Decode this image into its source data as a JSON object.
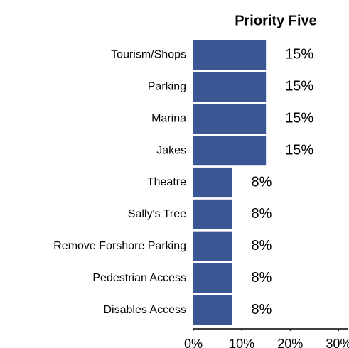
{
  "chart_data": {
    "type": "bar",
    "orientation": "horizontal",
    "title": "Priority Five",
    "categories": [
      "Tourism/Shops",
      "Parking",
      "Marina",
      "Jakes",
      "Theatre",
      "Sally's Tree",
      "Remove Forshore Parking",
      "Pedestrian Access",
      "Disables Access"
    ],
    "values": [
      15,
      15,
      15,
      15,
      8,
      8,
      8,
      8,
      8
    ],
    "value_labels": [
      "15%",
      "15%",
      "15%",
      "15%",
      "8%",
      "8%",
      "8%",
      "8%",
      "8%"
    ],
    "color": "#3a5793",
    "xlim": [
      0,
      32
    ],
    "xticks": [
      {
        "value": 0,
        "label": "0%"
      },
      {
        "value": 10,
        "label": "10%"
      },
      {
        "value": 20,
        "label": "20%"
      },
      {
        "value": 30,
        "label": "30%"
      }
    ]
  }
}
